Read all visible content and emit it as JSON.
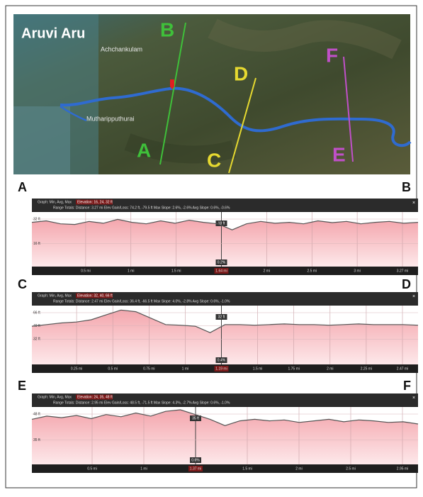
{
  "map": {
    "title": "Aruvi Aru",
    "places": [
      "Achchankulam",
      "Mutharipputhurai"
    ],
    "points": [
      "A",
      "B",
      "C",
      "D",
      "E",
      "F"
    ]
  },
  "profiles": [
    {
      "start": "A",
      "end": "B",
      "graph_line": "Graph: Min, Avg, Max",
      "elevation": "Elevation: 16, 24, 32 ft",
      "range_line": "Range Totals:   Distance: 3.27 mi     Elev Gain/Loss: 74.2 ft, -79.5 ft     Max Slope: 2.6%, -2.6%     Avg Slope: 0.6%, -0.6%",
      "y_labels": [
        "32 ft",
        "16 ft"
      ],
      "x_labels": [
        "0.5 mi",
        "1 mi",
        "1.5 mi",
        "1.64 mi",
        "2 mi",
        "2.5 mi",
        "3 mi",
        "3.27 mi"
      ],
      "cursor_index": 3,
      "marker_elevation": "18 ft",
      "marker_slope": "0.2%"
    },
    {
      "start": "C",
      "end": "D",
      "graph_line": "Graph: Min, Avg, Max",
      "elevation": "Elevation: 32, 40, 66 ft",
      "range_line": "Range Totals:   Distance: 2.47 mi     Elev Gain/Loss: 36.4 ft, -66.5 ft     Max Slope: 4.0%, -2.8%     Avg Slope: 0.6%, -1.0%",
      "y_labels": [
        "66 ft",
        "49 ft",
        "32 ft"
      ],
      "x_labels": [
        "0.25 mi",
        "0.5 mi",
        "0.75 mi",
        "1 mi",
        "1.19 mi",
        "1.5 mi",
        "1.75 mi",
        "2 mi",
        "2.25 mi",
        "2.47 mi"
      ],
      "cursor_index": 4,
      "marker_elevation": "32 ft",
      "marker_slope": "0.4%"
    },
    {
      "start": "E",
      "end": "F",
      "graph_line": "Graph: Min, Avg, Max",
      "elevation": "Elevation: 24, 35, 48 ft",
      "range_line": "Range Totals:   Distance: 2.95 mi     Elev Gain/Loss: 48.5 ft, -71.5 ft     Max Slope: 4.3%, -2.7%     Avg Slope: 0.6%, -1.0%",
      "y_labels": [
        "48 ft",
        "35 ft"
      ],
      "x_labels": [
        "0.5 mi",
        "1 mi",
        "1.37 mi",
        "1.5 mi",
        "2 mi",
        "2.5 mi",
        "2.95 mi"
      ],
      "cursor_index": 2,
      "marker_elevation": "35 ft",
      "marker_slope": "0.6%"
    }
  ]
}
